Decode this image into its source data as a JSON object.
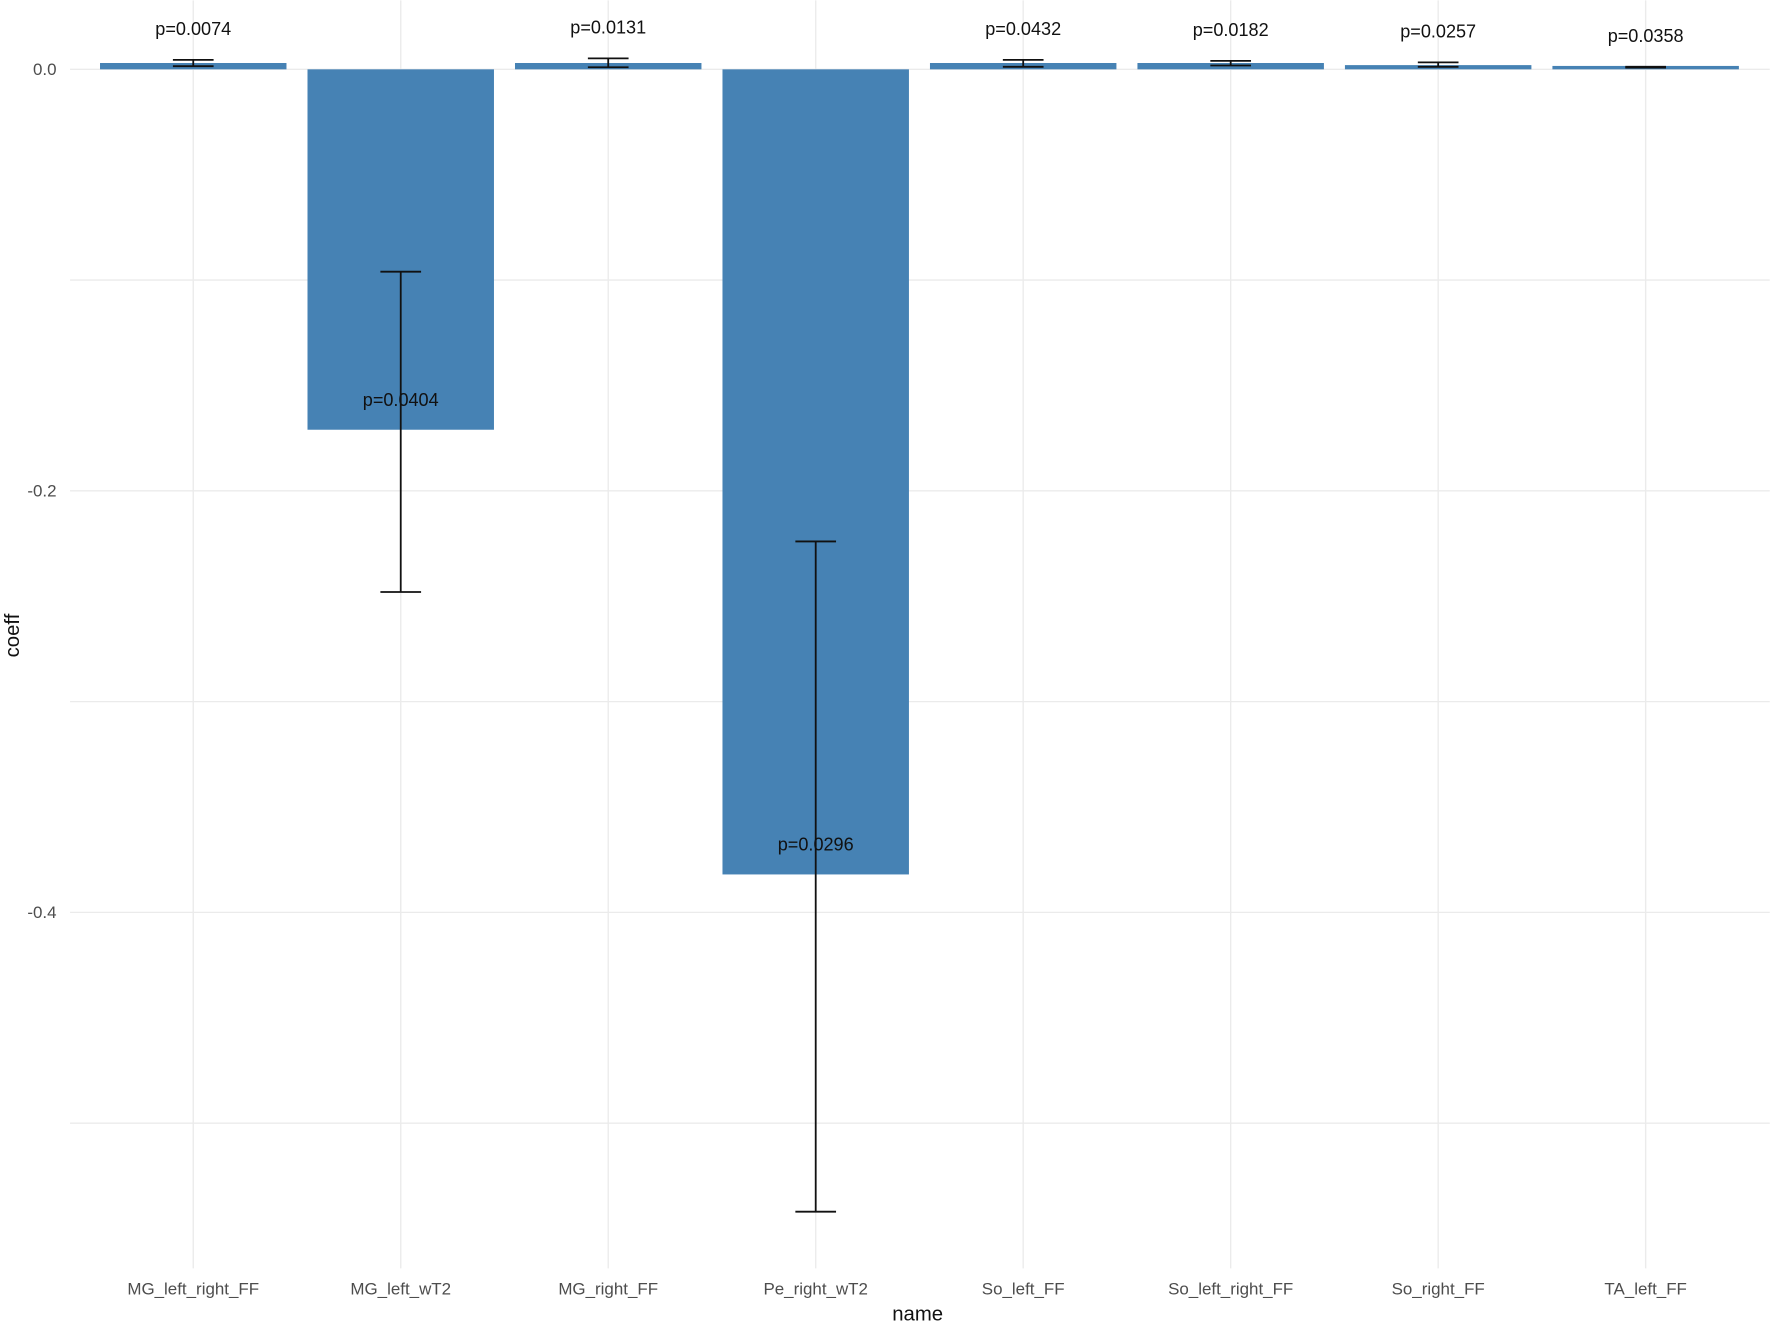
{
  "chart_data": {
    "type": "bar",
    "title": "",
    "xlabel": "name",
    "ylabel": "coeff",
    "ylim": [
      -0.569,
      0.033
    ],
    "yticks": [
      0.0,
      -0.2,
      -0.4
    ],
    "yticks_labels": [
      "0.0",
      "-0.2",
      "-0.4"
    ],
    "grid": true,
    "bar_color": "#4682B4",
    "categories": [
      "MG_left_right_FF",
      "MG_left_wT2",
      "MG_right_FF",
      "Pe_right_wT2",
      "So_left_FF",
      "So_left_right_FF",
      "So_right_FF",
      "TA_left_FF"
    ],
    "values": [
      0.003,
      -0.171,
      0.003,
      -0.382,
      0.003,
      0.003,
      0.002,
      0.001
    ],
    "error_low": [
      0.0015,
      -0.248,
      0.001,
      -0.542,
      0.0012,
      0.0018,
      0.0012,
      0.0008
    ],
    "error_high": [
      0.0045,
      -0.096,
      0.0052,
      -0.224,
      0.0045,
      0.004,
      0.0033,
      0.0012
    ],
    "annotations": [
      "p=0.0074",
      "p=0.0404",
      "p=0.0131",
      "p=0.0296",
      "p=0.0432",
      "p=0.0182",
      "p=0.0257",
      "p=0.0358"
    ]
  }
}
